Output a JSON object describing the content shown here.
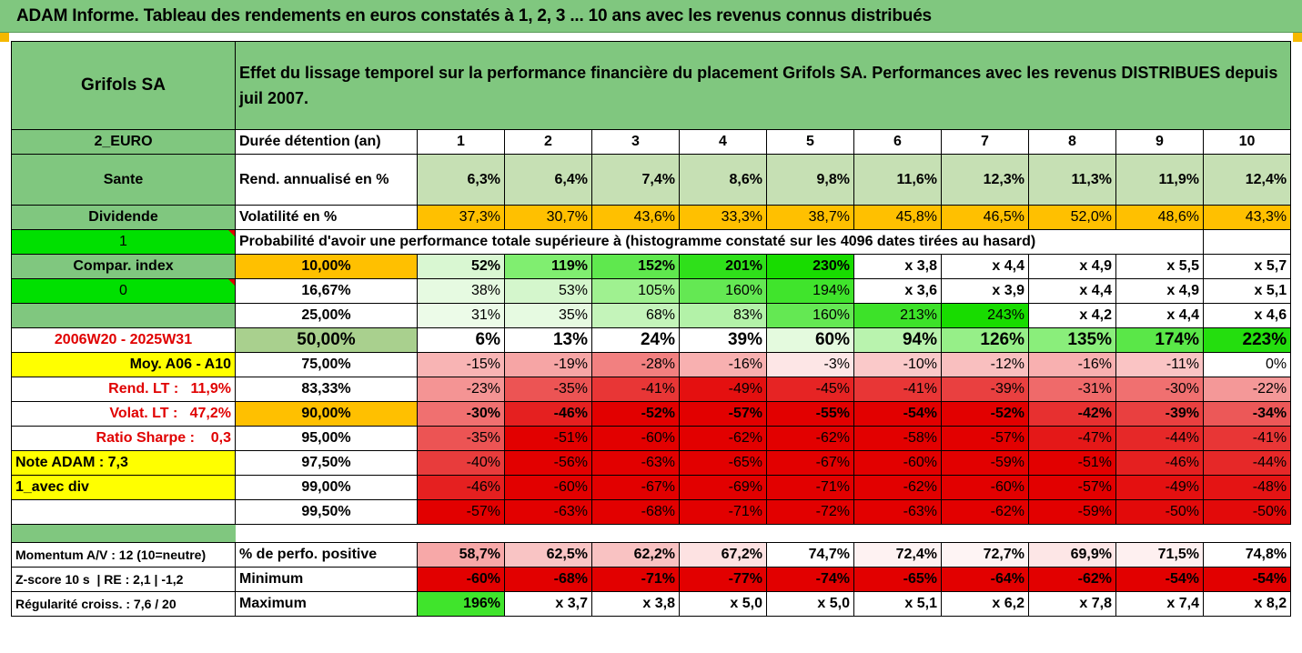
{
  "title": "ADAM Informe. Tableau des rendements en euros constatés à 1, 2, 3 ... 10 ans avec les revenus connus distribués",
  "company": "Grifols SA",
  "description": "Effet du lissage temporel sur la performance financière du placement Grifols SA. Performances avec les revenus DISTRIBUES depuis juil 2007.",
  "left": {
    "currency": "2_EURO",
    "sector": "Sante",
    "dividend": "Dividende",
    "flag1": "1",
    "compar_index": "Compar. index",
    "flag0": "0",
    "period": "2006W20 - 2025W31",
    "moy": "Moy. A06 - A10",
    "rend_lt": "Rend. LT :   11,9%",
    "volat_lt": "Volat. LT :   47,2%",
    "sharpe": "Ratio Sharpe :    0,3",
    "note": "Note ADAM : 7,3",
    "avec_div": "1_avec div",
    "momentum": "Momentum A/V : 12 (10=neutre)",
    "zscore": "Z-score 10 s  | RE : 2,1 | -1,2",
    "regularite": "Régularité croiss. : 7,6 / 20"
  },
  "labels": {
    "duree": "Durée détention (an)",
    "rend": "Rend. annualisé en %",
    "vol": "Volatilité en %",
    "proba": "Probabilité d'avoir une performance totale supérieure à (histogramme constaté sur les 4096 dates tirées au hasard)",
    "perf_pos": "% de perfo. positive",
    "minimum": "Minimum",
    "maximum": "Maximum"
  },
  "years": [
    "1",
    "2",
    "3",
    "4",
    "5",
    "6",
    "7",
    "8",
    "9",
    "10"
  ],
  "rend": [
    "6,3%",
    "6,4%",
    "7,4%",
    "8,6%",
    "9,8%",
    "11,6%",
    "12,3%",
    "11,3%",
    "11,9%",
    "12,4%"
  ],
  "vol": [
    "37,3%",
    "30,7%",
    "43,6%",
    "33,3%",
    "38,7%",
    "45,8%",
    "46,5%",
    "52,0%",
    "48,6%",
    "43,3%"
  ],
  "quantiles": [
    {
      "pct": "10,00%",
      "values": [
        "52%",
        "119%",
        "152%",
        "201%",
        "230%",
        "x 3,8",
        "x 4,4",
        "x 4,9",
        "x 5,5",
        "x 5,7"
      ],
      "colors": [
        "#d9f7d2",
        "#80ee70",
        "#5fe84e",
        "#2fe01a",
        "#18dc00",
        "#ffffff",
        "#ffffff",
        "#ffffff",
        "#ffffff",
        "#ffffff"
      ]
    },
    {
      "pct": "16,67%",
      "values": [
        "38%",
        "53%",
        "105%",
        "160%",
        "194%",
        "x 3,6",
        "x 3,9",
        "x 4,4",
        "x 4,9",
        "x 5,1"
      ],
      "colors": [
        "#e6fae1",
        "#d4f6cc",
        "#9ff190",
        "#64e853",
        "#40e42c",
        "#ffffff",
        "#ffffff",
        "#ffffff",
        "#ffffff",
        "#ffffff"
      ]
    },
    {
      "pct": "25,00%",
      "values": [
        "31%",
        "35%",
        "68%",
        "83%",
        "160%",
        "213%",
        "243%",
        "x 4,2",
        "x 4,4",
        "x 4,6"
      ],
      "colors": [
        "#ecfbe8",
        "#e6fae1",
        "#c4f4ba",
        "#b3f2a8",
        "#64e853",
        "#3de229",
        "#18dc00",
        "#ffffff",
        "#ffffff",
        "#ffffff"
      ]
    },
    {
      "pct": "50,00%",
      "values": [
        "6%",
        "13%",
        "24%",
        "39%",
        "60%",
        "94%",
        "126%",
        "135%",
        "174%",
        "223%"
      ],
      "colors": [
        "#ffffff",
        "#ffffff",
        "#ffffff",
        "#ffffff",
        "#e4fade",
        "#b9f3ae",
        "#96ef88",
        "#8aee7b",
        "#5ae748",
        "#24de0e"
      ]
    },
    {
      "pct": "75,00%",
      "values": [
        "-15%",
        "-19%",
        "-28%",
        "-16%",
        "-3%",
        "-10%",
        "-12%",
        "-16%",
        "-11%",
        "0%"
      ],
      "colors": [
        "#f8b4b4",
        "#f6a5a5",
        "#f28080",
        "#f8b0b0",
        "#fde6e6",
        "#fac9c9",
        "#f9bfbf",
        "#f8b0b0",
        "#fac4c4",
        "#ffffff"
      ]
    },
    {
      "pct": "83,33%",
      "values": [
        "-23%",
        "-35%",
        "-41%",
        "-49%",
        "-45%",
        "-41%",
        "-39%",
        "-31%",
        "-30%",
        "-22%"
      ],
      "colors": [
        "#f49494",
        "#ec5454",
        "#e83636",
        "#e41010",
        "#e62424",
        "#e83636",
        "#e94040",
        "#ef6a6a",
        "#f07070",
        "#f49898"
      ]
    },
    {
      "pct": "90,00%",
      "values": [
        "-30%",
        "-46%",
        "-52%",
        "-57%",
        "-55%",
        "-54%",
        "-52%",
        "-42%",
        "-39%",
        "-34%"
      ],
      "colors": [
        "#f07070",
        "#e52020",
        "#e20000",
        "#e20000",
        "#e20000",
        "#e20000",
        "#e20000",
        "#e73030",
        "#e94040",
        "#ec5858"
      ]
    },
    {
      "pct": "95,00%",
      "values": [
        "-35%",
        "-51%",
        "-60%",
        "-62%",
        "-62%",
        "-58%",
        "-57%",
        "-47%",
        "-44%",
        "-41%"
      ],
      "colors": [
        "#ec5454",
        "#e20000",
        "#e20000",
        "#e20000",
        "#e20000",
        "#e20000",
        "#e20000",
        "#e41818",
        "#e62828",
        "#e83636"
      ]
    },
    {
      "pct": "97,50%",
      "values": [
        "-40%",
        "-56%",
        "-63%",
        "-65%",
        "-67%",
        "-60%",
        "-59%",
        "-51%",
        "-46%",
        "-44%"
      ],
      "colors": [
        "#e83c3c",
        "#e20000",
        "#e20000",
        "#e20000",
        "#e20000",
        "#e20000",
        "#e20000",
        "#e20000",
        "#e52020",
        "#e62828"
      ]
    },
    {
      "pct": "99,00%",
      "values": [
        "-46%",
        "-60%",
        "-67%",
        "-69%",
        "-71%",
        "-62%",
        "-60%",
        "-57%",
        "-49%",
        "-48%"
      ],
      "colors": [
        "#e52020",
        "#e20000",
        "#e20000",
        "#e20000",
        "#e20000",
        "#e20000",
        "#e20000",
        "#e20000",
        "#e41010",
        "#e41414"
      ]
    },
    {
      "pct": "99,50%",
      "values": [
        "-57%",
        "-63%",
        "-68%",
        "-71%",
        "-72%",
        "-63%",
        "-62%",
        "-59%",
        "-50%",
        "-50%"
      ],
      "colors": [
        "#e20000",
        "#e20000",
        "#e20000",
        "#e20000",
        "#e20000",
        "#e20000",
        "#e20000",
        "#e20000",
        "#e20a0a",
        "#e20a0a"
      ]
    }
  ],
  "perf_pos": {
    "values": [
      "58,7%",
      "62,5%",
      "62,2%",
      "67,2%",
      "74,7%",
      "72,4%",
      "72,7%",
      "69,9%",
      "71,5%",
      "74,8%"
    ],
    "colors": [
      "#f7a8a8",
      "#f9c4c4",
      "#f9c2c2",
      "#fde2e2",
      "#ffffff",
      "#fef2f2",
      "#fef4f4",
      "#fde6e6",
      "#fef0f0",
      "#ffffff"
    ]
  },
  "minimum": {
    "values": [
      "-60%",
      "-68%",
      "-71%",
      "-77%",
      "-74%",
      "-65%",
      "-64%",
      "-62%",
      "-54%",
      "-54%"
    ],
    "colors": [
      "#e20000",
      "#e20000",
      "#e20000",
      "#e20000",
      "#e20000",
      "#e20000",
      "#e20000",
      "#e20000",
      "#e20000",
      "#e20000"
    ]
  },
  "maximum": {
    "values": [
      "196%",
      "x 3,7",
      "x 3,8",
      "x 5,0",
      "x 5,0",
      "x 5,1",
      "x 6,2",
      "x 7,8",
      "x 7,4",
      "x 8,2"
    ],
    "colors": [
      "#40e42c",
      "#ffffff",
      "#ffffff",
      "#ffffff",
      "#ffffff",
      "#ffffff",
      "#ffffff",
      "#ffffff",
      "#ffffff",
      "#ffffff"
    ]
  },
  "colors": {
    "header_green": "#80c77f",
    "light_green": "#c6e0b4",
    "orange": "#ffc000",
    "bright_green": "#00e000",
    "yellow": "#ffff00",
    "red_text": "#e00000"
  }
}
